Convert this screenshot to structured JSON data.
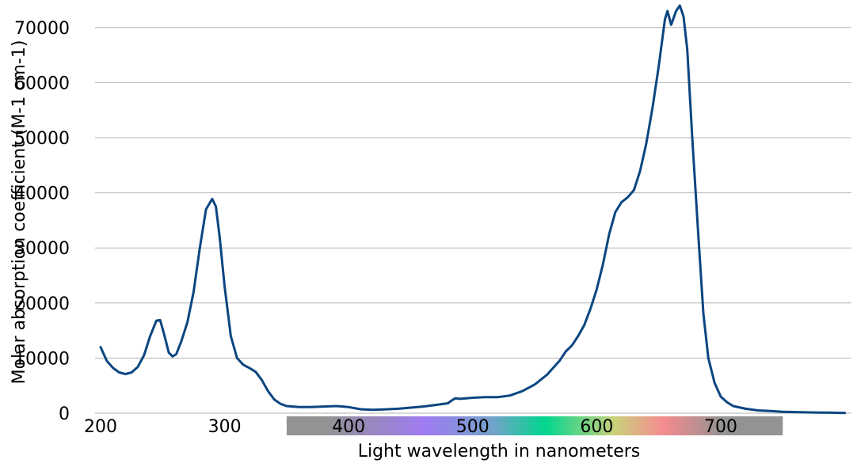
{
  "chart_data": {
    "type": "line",
    "title": "",
    "xlabel": "Light wavelength in nanometers",
    "ylabel": "Molar absorption coefficient (M-1 cm-1)",
    "xlim": [
      200,
      800
    ],
    "ylim": [
      0,
      75000
    ],
    "x_ticks": [
      200,
      300,
      400,
      500,
      600,
      700
    ],
    "y_ticks": [
      0,
      10000,
      20000,
      30000,
      40000,
      50000,
      60000,
      70000
    ],
    "grid": "horizontal",
    "colors": {
      "line": "#0b4680",
      "grid": "#b3b3b3",
      "band_gray": "#939393",
      "spectrum": [
        "#939393",
        "#a07bf2",
        "#00d68f",
        "#f58b8f",
        "#939393"
      ]
    },
    "spectrum_band": {
      "x_start": 350,
      "x_end": 750
    },
    "series": [
      {
        "x": [
          200,
          205,
          210,
          215,
          220,
          225,
          230,
          235,
          240,
          245,
          248,
          251,
          255,
          258,
          261,
          265,
          270,
          275,
          280,
          285,
          290,
          293,
          296,
          300,
          305,
          310,
          315,
          320,
          325,
          330,
          335,
          340,
          345,
          350,
          360,
          370,
          380,
          390,
          400,
          410,
          420,
          430,
          440,
          450,
          460,
          470,
          480,
          483,
          486,
          490,
          500,
          510,
          520,
          530,
          540,
          550,
          560,
          570,
          575,
          580,
          585,
          590,
          595,
          600,
          605,
          610,
          615,
          620,
          625,
          630,
          635,
          640,
          645,
          650,
          655,
          657,
          660,
          664,
          667,
          670,
          673,
          677,
          682,
          686,
          690,
          695,
          700,
          705,
          710,
          720,
          730,
          740,
          750,
          760,
          770,
          780,
          790,
          800
        ],
        "y": [
          12000,
          9500,
          8200,
          7400,
          7100,
          7400,
          8400,
          10500,
          14000,
          16800,
          16900,
          14500,
          11000,
          10300,
          10700,
          13000,
          16500,
          22000,
          30000,
          37000,
          38900,
          37500,
          32000,
          23000,
          14000,
          10000,
          8800,
          8200,
          7500,
          6000,
          4000,
          2500,
          1700,
          1300,
          1100,
          1100,
          1200,
          1300,
          1100,
          700,
          600,
          700,
          800,
          1000,
          1200,
          1500,
          1800,
          2300,
          2700,
          2600,
          2800,
          2900,
          2900,
          3200,
          4000,
          5200,
          7000,
          9500,
          11200,
          12300,
          14000,
          16000,
          19000,
          22500,
          27000,
          32500,
          36500,
          38300,
          39200,
          40500,
          44000,
          49000,
          55500,
          63000,
          71500,
          73000,
          70500,
          73000,
          74000,
          72000,
          66000,
          50000,
          32000,
          18000,
          10000,
          5500,
          3000,
          2000,
          1300,
          800,
          500,
          400,
          250,
          200,
          150,
          100,
          80,
          50
        ]
      }
    ]
  }
}
